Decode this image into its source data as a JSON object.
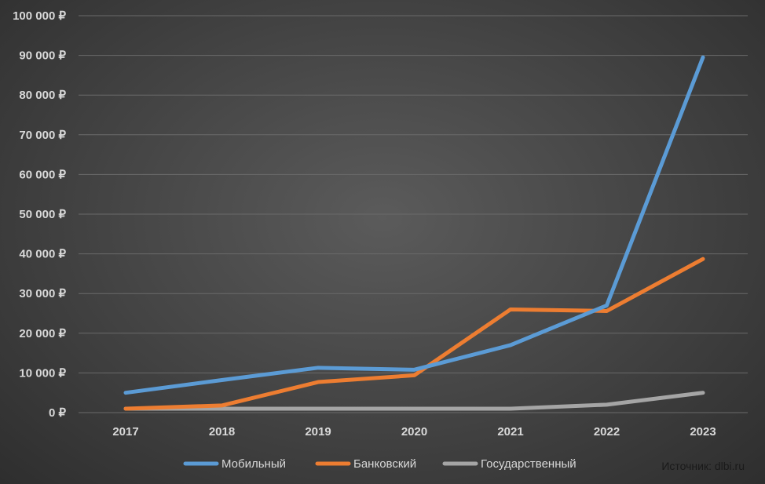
{
  "chart_data": {
    "type": "line",
    "currency": "₽",
    "x": [
      "2017",
      "2018",
      "2019",
      "2020",
      "2021",
      "2022",
      "2023"
    ],
    "ylim": [
      0,
      100000
    ],
    "ytick_step": 10000,
    "ytick_labels": [
      "0 ₽",
      "10 000 ₽",
      "20 000 ₽",
      "30 000 ₽",
      "40 000 ₽",
      "50 000 ₽",
      "60 000 ₽",
      "70 000 ₽",
      "80 000 ₽",
      "90 000 ₽",
      "100 000 ₽"
    ],
    "grid": true,
    "legend_position": "bottom",
    "series": [
      {
        "name": "Мобильный",
        "color": "#5b9bd5",
        "values": [
          5000,
          8200,
          11300,
          10800,
          17000,
          27000,
          89500
        ]
      },
      {
        "name": "Банковский",
        "color": "#ed7d31",
        "values": [
          1000,
          1800,
          7700,
          9400,
          26000,
          25600,
          38700
        ]
      },
      {
        "name": "Государственный",
        "color": "#a5a5a5",
        "values": [
          1000,
          1000,
          1000,
          1000,
          1000,
          2000,
          5000
        ]
      }
    ]
  },
  "source_note": "Источник: dlbi.ru"
}
